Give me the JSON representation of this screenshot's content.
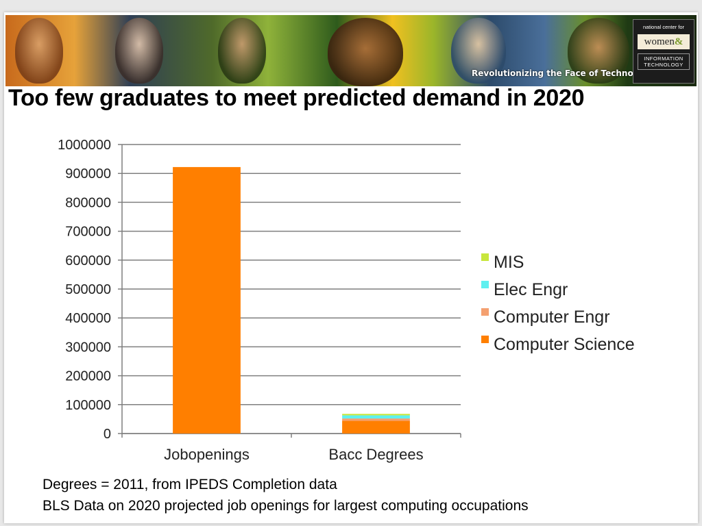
{
  "slide": {
    "title": "Too few graduates to meet predicted demand in 2020",
    "banner_tagline": "Revolutionizing the Face of Technology",
    "logo": {
      "top_text": "national center for",
      "women_text": "women",
      "amp": "&",
      "bottom_text": "INFORMATION TECHNOLOGY"
    },
    "footnotes": [
      "Degrees = 2011, from IPEDS Completion data",
      "BLS Data on 2020 projected job openings for largest computing occupations"
    ]
  },
  "chart_data": {
    "type": "bar",
    "stacked": true,
    "title": "",
    "xlabel": "",
    "ylabel": "",
    "categories": [
      "Jobopenings",
      "Bacc Degrees"
    ],
    "ylim": [
      0,
      1000000
    ],
    "yticks": [
      "0",
      "100000",
      "200000",
      "300000",
      "400000",
      "500000",
      "600000",
      "700000",
      "800000",
      "900000",
      "1000000"
    ],
    "grid": true,
    "legend_position": "right",
    "series": [
      {
        "name": "Computer Science",
        "color": "#ff7f00",
        "values": [
          922000,
          44000
        ]
      },
      {
        "name": "Computer Engr",
        "color": "#f4a070",
        "values": [
          0,
          8000
        ]
      },
      {
        "name": "Elec Engr",
        "color": "#5ff0f0",
        "values": [
          0,
          11000
        ]
      },
      {
        "name": "MIS",
        "color": "#c8e63c",
        "values": [
          0,
          5000
        ]
      }
    ],
    "legend_order": [
      "MIS",
      "Elec Engr",
      "Computer Engr",
      "Computer Science"
    ]
  }
}
